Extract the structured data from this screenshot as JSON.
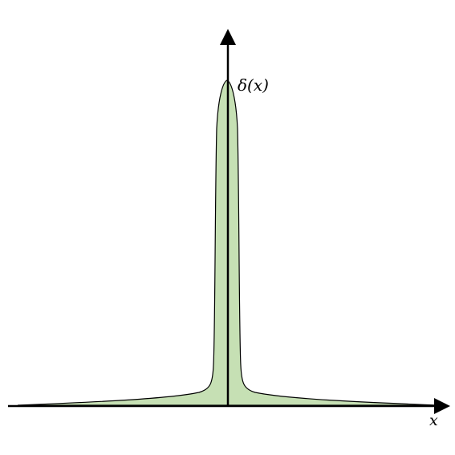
{
  "labels": {
    "function": "δ(x)",
    "x_axis": "x"
  },
  "colors": {
    "fill": "#c6e0b4",
    "stroke": "#000000",
    "axis": "#000000"
  }
}
